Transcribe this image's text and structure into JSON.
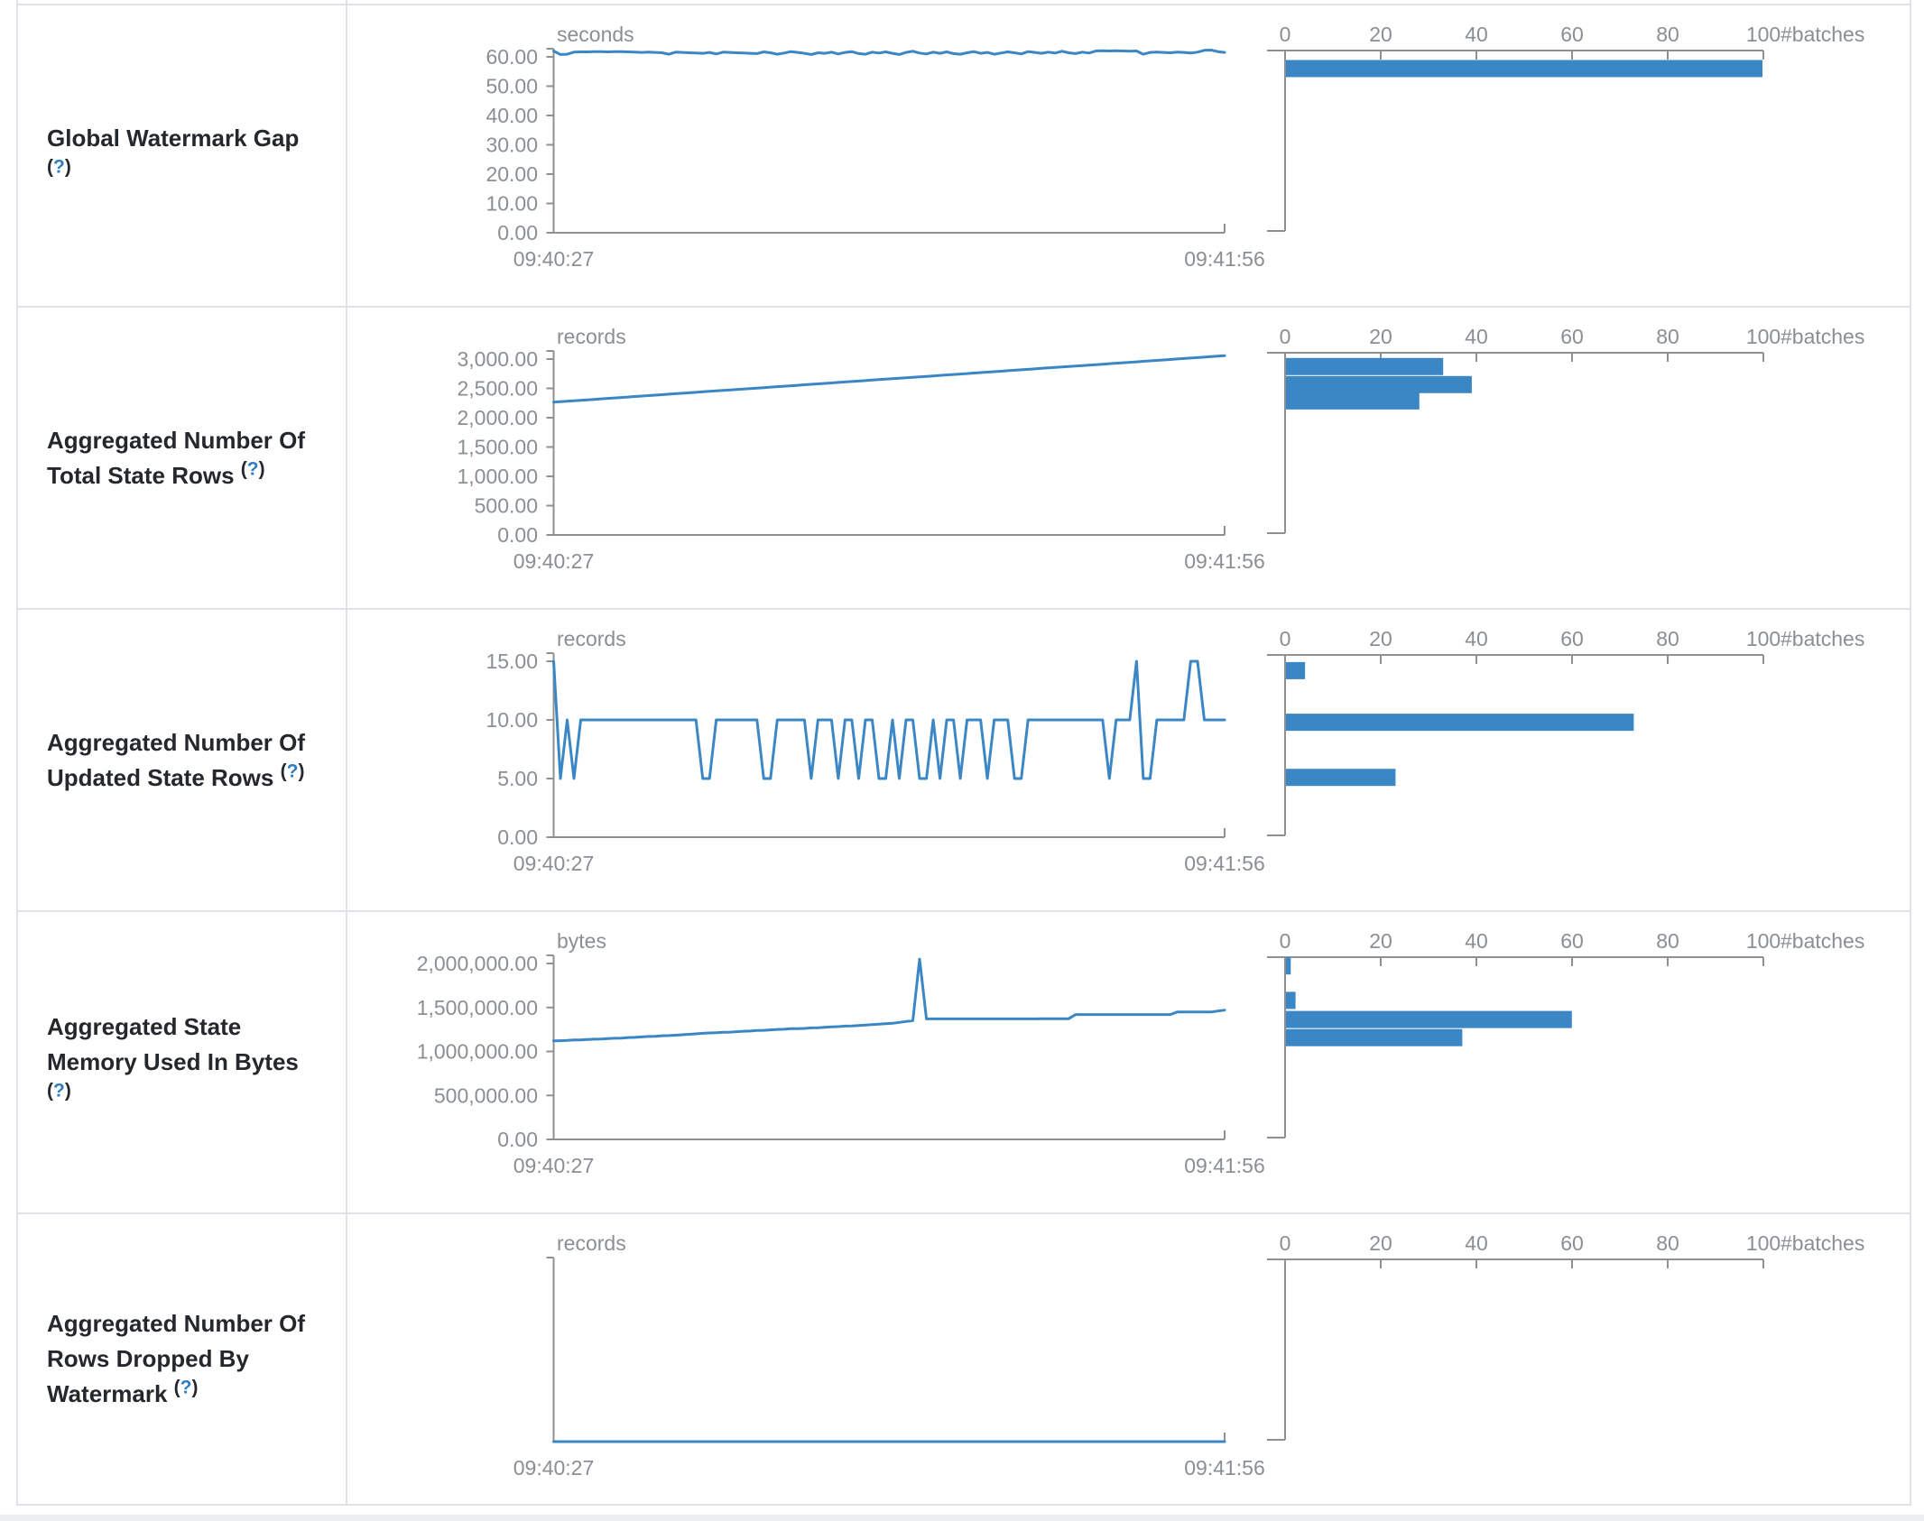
{
  "page": {
    "background": "#ffffff",
    "accent_blue": "#3b87c5",
    "axis_line_color": "#909090",
    "axis_text_color": "#8a8f94",
    "label_color": "#24282d",
    "help_question_color": "#2f7cc0",
    "border_color": "#dfe2e6"
  },
  "help_link": {
    "open": "(",
    "q": "?",
    "close": ")"
  },
  "x_axis": {
    "start_label": "09:40:27",
    "end_label": "09:41:56"
  },
  "histogram_axis": {
    "tick_labels": [
      "0",
      "20",
      "40",
      "60",
      "80",
      "100"
    ],
    "max": 100,
    "unit_label": "#batches"
  },
  "chart_data": [
    {
      "id": "global-watermark-gap",
      "type": "line+histogram",
      "label": "Global Watermark Gap",
      "label_lines": [
        "Global Watermark Gap"
      ],
      "y_axis": {
        "unit": "seconds",
        "max_tick": 60,
        "ticks": [
          {
            "v": 60,
            "label": "60.00"
          },
          {
            "v": 50,
            "label": "50.00"
          },
          {
            "v": 40,
            "label": "40.00"
          },
          {
            "v": 30,
            "label": "30.00"
          },
          {
            "v": 20,
            "label": "20.00"
          },
          {
            "v": 10,
            "label": "10.00"
          },
          {
            "v": 0,
            "label": "0.00"
          }
        ]
      },
      "series": [
        62,
        60.8,
        60.9,
        61.6,
        61.7,
        61.7,
        61.8,
        61.8,
        61.7,
        61.8,
        61.8,
        61.7,
        61.6,
        61.5,
        61.6,
        61.5,
        61.4,
        60.9,
        61.6,
        61.5,
        61.4,
        61.3,
        61.2,
        61.5,
        61.0,
        61.6,
        61.5,
        61.4,
        61.3,
        61.2,
        61.1,
        61.7,
        61.4,
        60.9,
        61.3,
        61.8,
        61.5,
        61.2,
        60.8,
        61.4,
        61.2,
        61.6,
        61.0,
        61.5,
        61.8,
        61.1,
        60.9,
        61.6,
        61.3,
        61.7,
        61.2,
        60.8,
        61.5,
        61.9,
        61.3,
        61.0,
        61.6,
        61.2,
        61.7,
        61.1,
        60.9,
        61.4,
        61.8,
        61.2,
        61.5,
        60.9,
        61.3,
        61.7,
        61.4,
        61.0,
        61.8,
        61.5,
        61.2,
        61.6,
        61.3,
        61.9,
        61.4,
        61.1,
        61.6,
        61.3,
        62.0,
        62.1,
        62.0,
        62.1,
        62.0,
        61.9,
        62.0,
        60.9,
        61.5,
        61.6,
        61.5,
        61.4,
        61.6,
        61.5,
        61.3,
        61.6,
        62.2,
        62.3,
        61.8,
        61.5
      ],
      "histogram": {
        "bars": [
          {
            "value": 56,
            "count": 100
          }
        ]
      }
    },
    {
      "id": "aggregated-number-of-total-state-rows",
      "type": "line+histogram",
      "label": "Aggregated Number Of Total State Rows",
      "label_lines": [
        "Aggregated Number Of",
        "Total State Rows"
      ],
      "y_axis": {
        "unit": "records",
        "max_tick": 3000,
        "ticks": [
          {
            "v": 3000,
            "label": "3,000.00"
          },
          {
            "v": 2500,
            "label": "2,500.00"
          },
          {
            "v": 2000,
            "label": "2,000.00"
          },
          {
            "v": 1500,
            "label": "1,500.00"
          },
          {
            "v": 1000,
            "label": "1,000.00"
          },
          {
            "v": 500,
            "label": "500.00"
          },
          {
            "v": 0,
            "label": "0.00"
          }
        ]
      },
      "series": [
        2265,
        2273,
        2281,
        2289,
        2297,
        2305,
        2313,
        2321,
        2329,
        2337,
        2345,
        2353,
        2361,
        2369,
        2377,
        2385,
        2393,
        2401,
        2409,
        2417,
        2425,
        2433,
        2441,
        2449,
        2457,
        2465,
        2473,
        2481,
        2489,
        2497,
        2505,
        2513,
        2521,
        2529,
        2537,
        2545,
        2553,
        2561,
        2569,
        2577,
        2585,
        2593,
        2601,
        2609,
        2617,
        2625,
        2633,
        2641,
        2649,
        2657,
        2665,
        2673,
        2681,
        2689,
        2697,
        2705,
        2713,
        2721,
        2729,
        2737,
        2745,
        2753,
        2761,
        2769,
        2777,
        2785,
        2793,
        2801,
        2809,
        2817,
        2825,
        2833,
        2841,
        2849,
        2857,
        2865,
        2873,
        2881,
        2889,
        2897,
        2905,
        2913,
        2921,
        2929,
        2937,
        2945,
        2953,
        2961,
        2969,
        2977,
        2985,
        2993,
        3001,
        3009,
        3017,
        3025,
        3033,
        3041,
        3049,
        3057
      ],
      "histogram": {
        "bars": [
          {
            "value": 2873,
            "count": 33
          },
          {
            "value": 2564,
            "count": 39
          },
          {
            "value": 2286,
            "count": 28
          }
        ]
      }
    },
    {
      "id": "aggregated-number-of-updated-state-rows",
      "type": "line+histogram",
      "label": "Aggregated Number Of Updated State Rows",
      "label_lines": [
        "Aggregated Number Of",
        "Updated State Rows"
      ],
      "y_axis": {
        "unit": "records",
        "max_tick": 15,
        "ticks": [
          {
            "v": 15,
            "label": "15.00"
          },
          {
            "v": 10,
            "label": "10.00"
          },
          {
            "v": 5,
            "label": "5.00"
          },
          {
            "v": 0,
            "label": "0.00"
          }
        ]
      },
      "series": [
        15,
        5,
        10,
        5,
        10,
        10,
        10,
        10,
        10,
        10,
        10,
        10,
        10,
        10,
        10,
        10,
        10,
        10,
        10,
        10,
        10,
        10,
        5,
        5,
        10,
        10,
        10,
        10,
        10,
        10,
        10,
        5,
        5,
        10,
        10,
        10,
        10,
        10,
        5,
        10,
        10,
        10,
        5,
        10,
        10,
        5,
        10,
        10,
        5,
        5,
        10,
        5,
        10,
        10,
        5,
        5,
        10,
        5,
        10,
        10,
        5,
        10,
        10,
        10,
        5,
        10,
        10,
        10,
        5,
        5,
        10,
        10,
        10,
        10,
        10,
        10,
        10,
        10,
        10,
        10,
        10,
        10,
        5,
        10,
        10,
        10,
        15,
        5,
        5,
        10,
        10,
        10,
        10,
        10,
        15,
        15,
        10,
        10,
        10,
        10
      ],
      "histogram": {
        "bars": [
          {
            "value": 14.2,
            "count": 4
          },
          {
            "value": 9.8,
            "count": 73
          },
          {
            "value": 5.1,
            "count": 23
          }
        ]
      }
    },
    {
      "id": "aggregated-state-memory-used-in-bytes",
      "type": "line+histogram",
      "label": "Aggregated State Memory Used In Bytes",
      "label_lines": [
        "Aggregated State",
        "Memory Used In Bytes"
      ],
      "y_axis": {
        "unit": "bytes",
        "max_tick": 2000000,
        "ticks": [
          {
            "v": 2000000,
            "label": "2,000,000.00"
          },
          {
            "v": 1500000,
            "label": "1,500,000.00"
          },
          {
            "v": 1000000,
            "label": "1,000,000.00"
          },
          {
            "v": 500000,
            "label": "500,000.00"
          },
          {
            "v": 0,
            "label": "0.00"
          }
        ]
      },
      "series": [
        1120000,
        1122000,
        1125000,
        1130000,
        1131000,
        1135000,
        1140000,
        1141000,
        1146000,
        1150000,
        1152000,
        1158000,
        1160000,
        1165000,
        1170000,
        1172000,
        1178000,
        1180000,
        1185000,
        1190000,
        1195000,
        1200000,
        1206000,
        1210000,
        1212000,
        1218000,
        1220000,
        1225000,
        1230000,
        1232000,
        1238000,
        1240000,
        1245000,
        1250000,
        1252000,
        1258000,
        1260000,
        1262000,
        1268000,
        1270000,
        1275000,
        1280000,
        1282000,
        1288000,
        1290000,
        1295000,
        1300000,
        1305000,
        1310000,
        1315000,
        1320000,
        1330000,
        1340000,
        1350000,
        2050000,
        1370000,
        1370000,
        1370000,
        1370000,
        1370000,
        1370000,
        1370000,
        1370000,
        1370000,
        1370000,
        1370000,
        1370000,
        1370000,
        1370000,
        1370000,
        1370000,
        1370000,
        1372000,
        1372000,
        1372000,
        1372000,
        1372000,
        1420000,
        1420000,
        1420000,
        1420000,
        1420000,
        1420000,
        1420000,
        1420000,
        1420000,
        1420000,
        1420000,
        1420000,
        1420000,
        1420000,
        1420000,
        1448000,
        1448000,
        1448000,
        1448000,
        1448000,
        1448000,
        1460000,
        1470000
      ],
      "histogram": {
        "bars": [
          {
            "value": 1972000,
            "count": 1
          },
          {
            "value": 1580000,
            "count": 2
          },
          {
            "value": 1363000,
            "count": 60
          },
          {
            "value": 1157000,
            "count": 37
          }
        ]
      }
    },
    {
      "id": "aggregated-number-of-rows-dropped-by-watermark",
      "type": "line+histogram",
      "label": "Aggregated Number Of Rows Dropped By Watermark",
      "label_lines": [
        "Aggregated Number Of",
        "Rows Dropped By",
        "Watermark"
      ],
      "y_axis": {
        "unit": "records",
        "max_tick": 1,
        "ticks": []
      },
      "series": [
        0,
        0,
        0,
        0,
        0,
        0,
        0,
        0,
        0,
        0,
        0,
        0,
        0,
        0,
        0,
        0,
        0,
        0,
        0,
        0,
        0,
        0,
        0,
        0,
        0,
        0,
        0,
        0,
        0,
        0,
        0,
        0,
        0,
        0,
        0,
        0,
        0,
        0,
        0,
        0,
        0,
        0,
        0,
        0,
        0,
        0,
        0,
        0,
        0,
        0,
        0,
        0,
        0,
        0,
        0,
        0,
        0,
        0,
        0,
        0,
        0,
        0,
        0,
        0,
        0,
        0,
        0,
        0,
        0,
        0,
        0,
        0,
        0,
        0,
        0,
        0,
        0,
        0,
        0,
        0,
        0,
        0,
        0,
        0,
        0,
        0,
        0,
        0,
        0,
        0,
        0,
        0,
        0,
        0,
        0,
        0,
        0,
        0,
        0,
        0
      ],
      "histogram": {
        "bars": []
      }
    }
  ]
}
